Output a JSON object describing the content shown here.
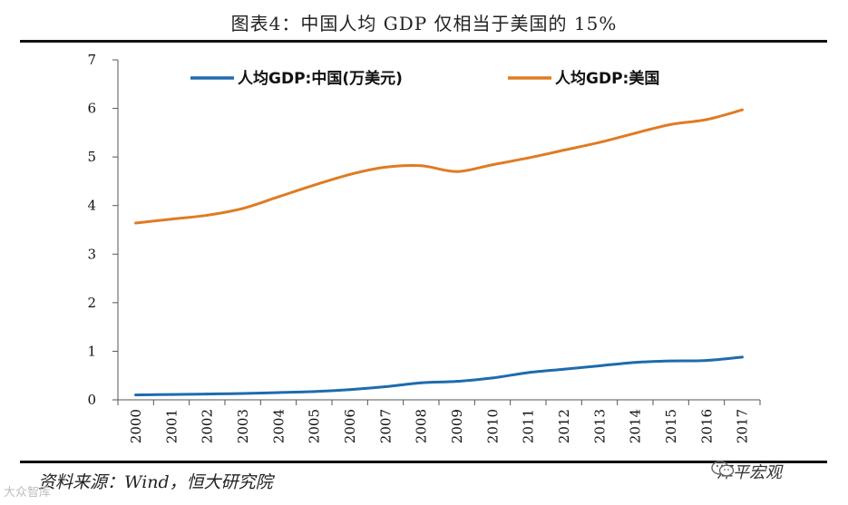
{
  "title": "图表4：中国人均 GDP 仅相当于美国的 15%",
  "source": "资料来源：Wind，恒大研究院",
  "brand": "泽平宏观",
  "watermark": "大众智库",
  "colors": {
    "china": "#1F6BAE",
    "us": "#E07B24",
    "axis": "#555555"
  },
  "chart_data": {
    "type": "line",
    "x": [
      "2000",
      "2001",
      "2002",
      "2003",
      "2004",
      "2005",
      "2006",
      "2007",
      "2008",
      "2009",
      "2010",
      "2011",
      "2012",
      "2013",
      "2014",
      "2015",
      "2016",
      "2017"
    ],
    "ylim": [
      0,
      7
    ],
    "yticks": [
      0,
      1,
      2,
      3,
      4,
      5,
      6,
      7
    ],
    "legend_position": "top",
    "grid": false,
    "series": [
      {
        "name": "人均GDP:中国(万美元)",
        "color": "#1F6BAE",
        "values": [
          0.1,
          0.11,
          0.12,
          0.13,
          0.15,
          0.17,
          0.21,
          0.27,
          0.35,
          0.38,
          0.45,
          0.56,
          0.63,
          0.7,
          0.77,
          0.8,
          0.81,
          0.88
        ]
      },
      {
        "name": "人均GDP:美国",
        "color": "#E07B24",
        "values": [
          3.64,
          3.72,
          3.8,
          3.94,
          4.18,
          4.42,
          4.64,
          4.79,
          4.82,
          4.7,
          4.84,
          4.98,
          5.14,
          5.3,
          5.49,
          5.67,
          5.77,
          5.97
        ]
      }
    ]
  }
}
